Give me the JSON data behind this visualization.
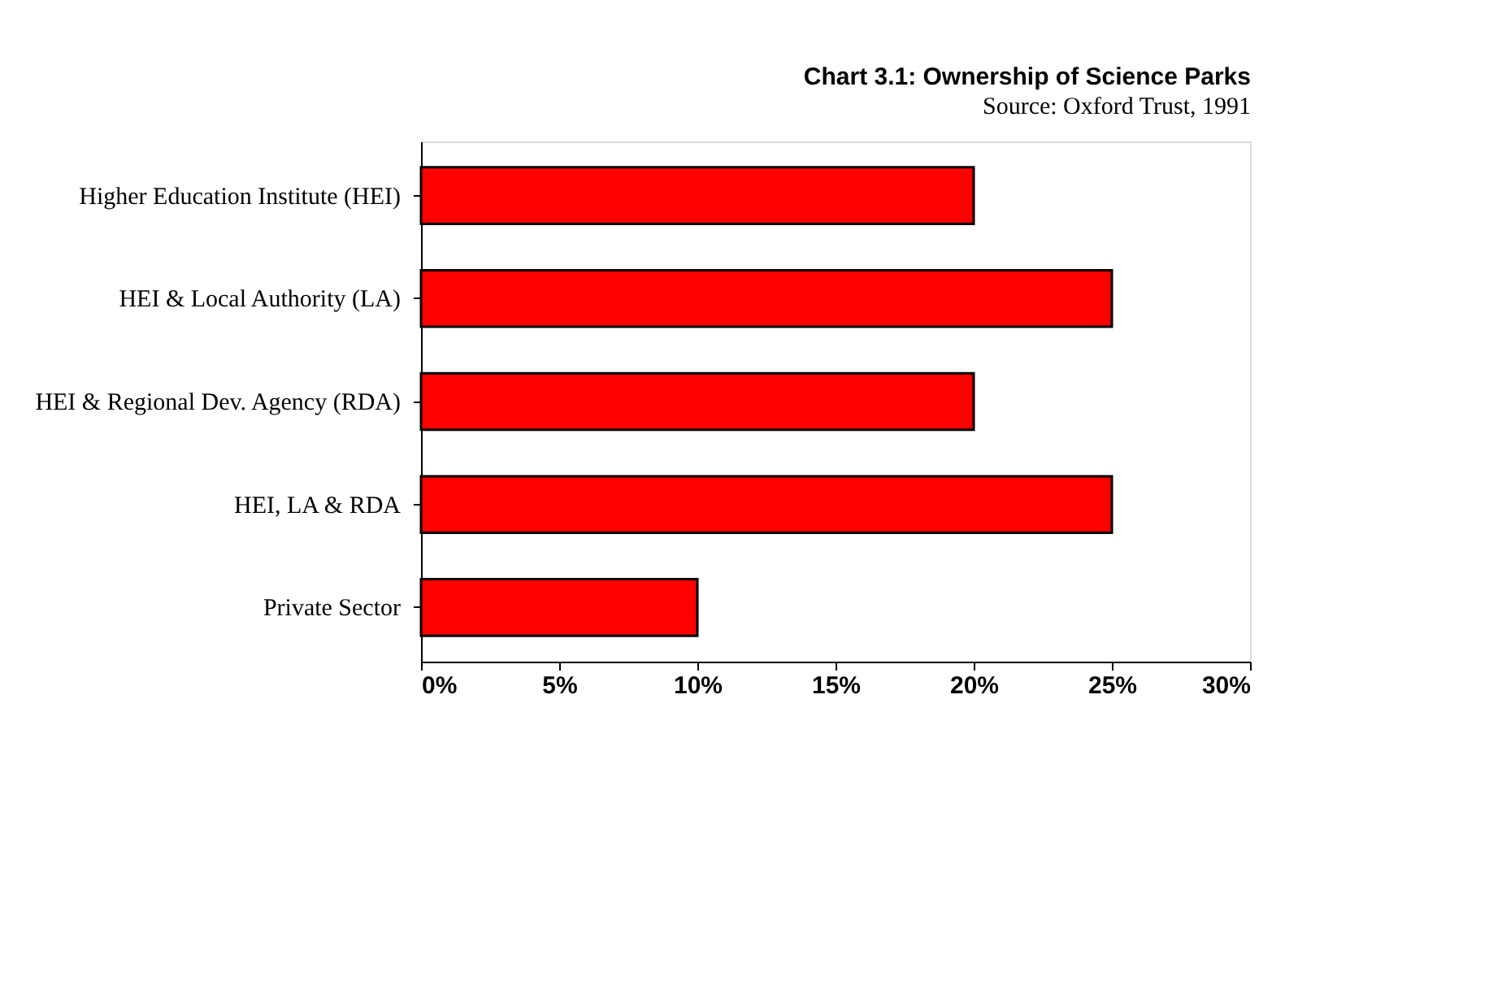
{
  "chart_data": {
    "type": "bar",
    "orientation": "horizontal",
    "title": "Chart 3.1: Ownership of Science Parks",
    "annotations": [
      "Source: Oxford Trust, 1991"
    ],
    "categories": [
      "Higher Education Institute (HEI)",
      "HEI & Local Authority (LA)",
      "HEI & Regional Dev. Agency (RDA)",
      "HEI, LA & RDA",
      "Private Sector"
    ],
    "values": [
      20,
      25,
      20,
      25,
      10
    ],
    "color": "#ff0000",
    "xlim": [
      0,
      30
    ],
    "xticks": [
      {
        "value": 0,
        "label": "0%"
      },
      {
        "value": 5,
        "label": "5%"
      },
      {
        "value": 10,
        "label": "10%"
      },
      {
        "value": 15,
        "label": "15%"
      },
      {
        "value": 20,
        "label": "20%"
      },
      {
        "value": 25,
        "label": "25%"
      },
      {
        "value": 30,
        "label": "30%"
      }
    ],
    "grid": false
  }
}
